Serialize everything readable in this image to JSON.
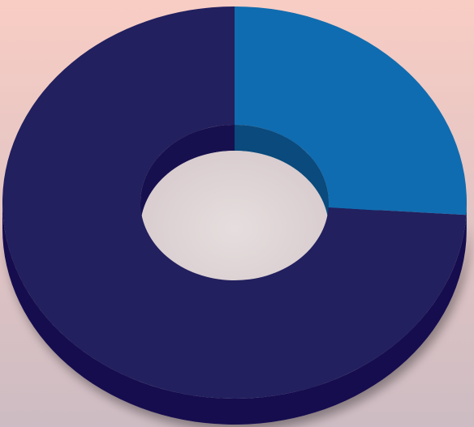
{
  "chart_data": {
    "type": "pie",
    "style": "3d-donut",
    "values": [
      26,
      74
    ],
    "legend": "none",
    "colors": {
      "slices": [
        "#106cb0",
        "#22205e"
      ],
      "slice_sides": [
        "#0a4a7c",
        "#17104f"
      ],
      "background_top": "#f8cdc4",
      "background_bottom": "#cdbcc3"
    }
  }
}
